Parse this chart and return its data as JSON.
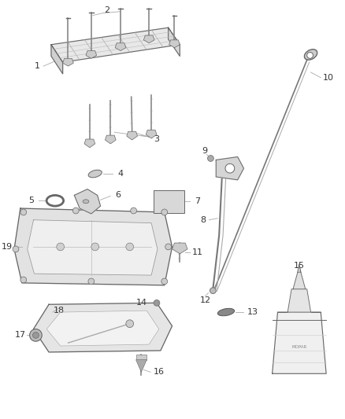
{
  "bg_color": "#ffffff",
  "lc": "#666666",
  "tc": "#333333",
  "fig_w": 4.38,
  "fig_h": 5.33,
  "dpi": 100
}
